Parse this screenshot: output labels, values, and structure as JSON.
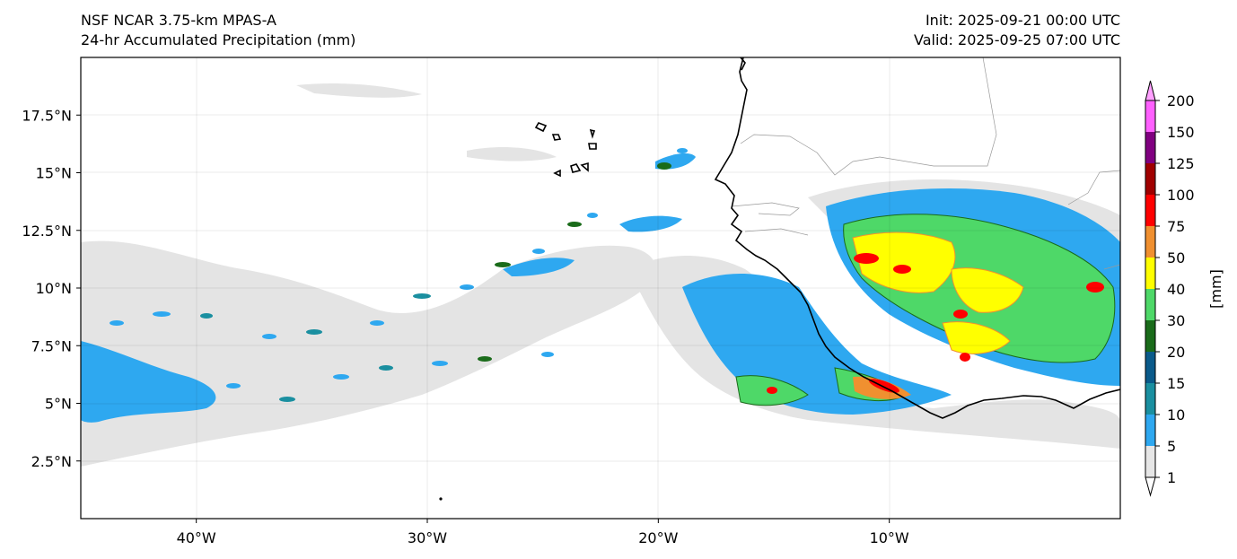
{
  "header": {
    "title_left_line1": "NSF NCAR 3.75-km MPAS-A",
    "title_left_line2": "24-hr Accumulated Precipitation (mm)",
    "title_right_line1": "Init: 2025-09-21 00:00 UTC",
    "title_right_line2": "Valid: 2025-09-25 07:00 UTC"
  },
  "map": {
    "lon_range": [
      -45,
      0
    ],
    "lat_range": [
      0,
      20
    ],
    "lon_ticks": [
      {
        "value": -40,
        "label": "40°W"
      },
      {
        "value": -30,
        "label": "30°W"
      },
      {
        "value": -20,
        "label": "20°W"
      },
      {
        "value": -10,
        "label": "10°W"
      }
    ],
    "lat_ticks": [
      {
        "value": 2.5,
        "label": "2.5°N"
      },
      {
        "value": 5,
        "label": "5°N"
      },
      {
        "value": 7.5,
        "label": "7.5°N"
      },
      {
        "value": 10,
        "label": "10°N"
      },
      {
        "value": 12.5,
        "label": "12.5°N"
      },
      {
        "value": 15,
        "label": "15°N"
      },
      {
        "value": 17.5,
        "label": "17.5°N"
      }
    ],
    "gridlines": true
  },
  "colorbar": {
    "unit_label": "[mm]",
    "levels": [
      {
        "label": "1",
        "color": "#e6e6e6"
      },
      {
        "label": "5",
        "color": "#2ea8f0"
      },
      {
        "label": "10",
        "color": "#1a8fa0"
      },
      {
        "label": "15",
        "color": "#0a5a8a"
      },
      {
        "label": "20",
        "color": "#1a6b1a"
      },
      {
        "label": "30",
        "color": "#4ed868"
      },
      {
        "label": "40",
        "color": "#ffff00"
      },
      {
        "label": "50",
        "color": "#f09030"
      },
      {
        "label": "75",
        "color": "#ff0000"
      },
      {
        "label": "100",
        "color": "#a00000"
      },
      {
        "label": "125",
        "color": "#800080"
      },
      {
        "label": "150",
        "color": "#ff60ff"
      },
      {
        "label": "200",
        "color": ""
      }
    ],
    "under_color": "#ffffff",
    "over_color": "#ffa0ff"
  }
}
